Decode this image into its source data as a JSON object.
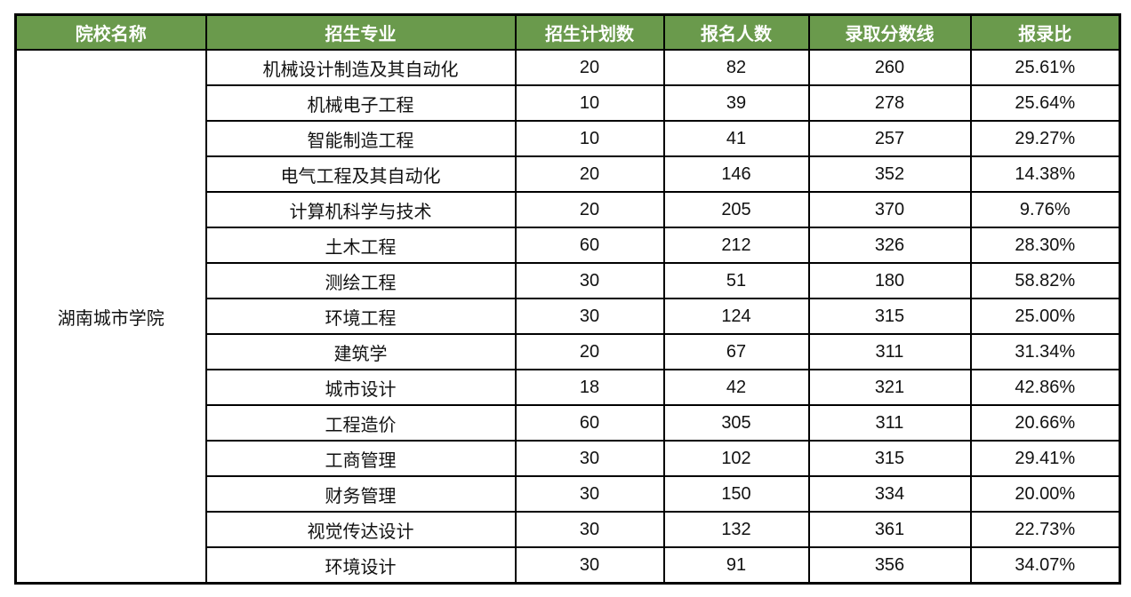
{
  "colors": {
    "header_bg": "#6a9a4c",
    "header_text": "#ffffff",
    "border": "#000000",
    "cell_bg": "#ffffff",
    "cell_text": "#111111"
  },
  "chart_data": {
    "type": "table",
    "columns": [
      "院校名称",
      "招生专业",
      "招生计划数",
      "报名人数",
      "录取分数线",
      "报录比"
    ],
    "college": "湖南城市学院",
    "rows": [
      [
        "机械设计制造及其自动化",
        "20",
        "82",
        "260",
        "25.61%"
      ],
      [
        "机械电子工程",
        "10",
        "39",
        "278",
        "25.64%"
      ],
      [
        "智能制造工程",
        "10",
        "41",
        "257",
        "29.27%"
      ],
      [
        "电气工程及其自动化",
        "20",
        "146",
        "352",
        "14.38%"
      ],
      [
        "计算机科学与技术",
        "20",
        "205",
        "370",
        "9.76%"
      ],
      [
        "土木工程",
        "60",
        "212",
        "326",
        "28.30%"
      ],
      [
        "测绘工程",
        "30",
        "51",
        "180",
        "58.82%"
      ],
      [
        "环境工程",
        "30",
        "124",
        "315",
        "25.00%"
      ],
      [
        "建筑学",
        "20",
        "67",
        "311",
        "31.34%"
      ],
      [
        "城市设计",
        "18",
        "42",
        "321",
        "42.86%"
      ],
      [
        "工程造价",
        "60",
        "305",
        "311",
        "20.66%"
      ],
      [
        "工商管理",
        "30",
        "102",
        "315",
        "29.41%"
      ],
      [
        "财务管理",
        "30",
        "150",
        "334",
        "20.00%"
      ],
      [
        "视觉传达设计",
        "30",
        "132",
        "361",
        "22.73%"
      ],
      [
        "环境设计",
        "30",
        "91",
        "356",
        "34.07%"
      ]
    ]
  }
}
